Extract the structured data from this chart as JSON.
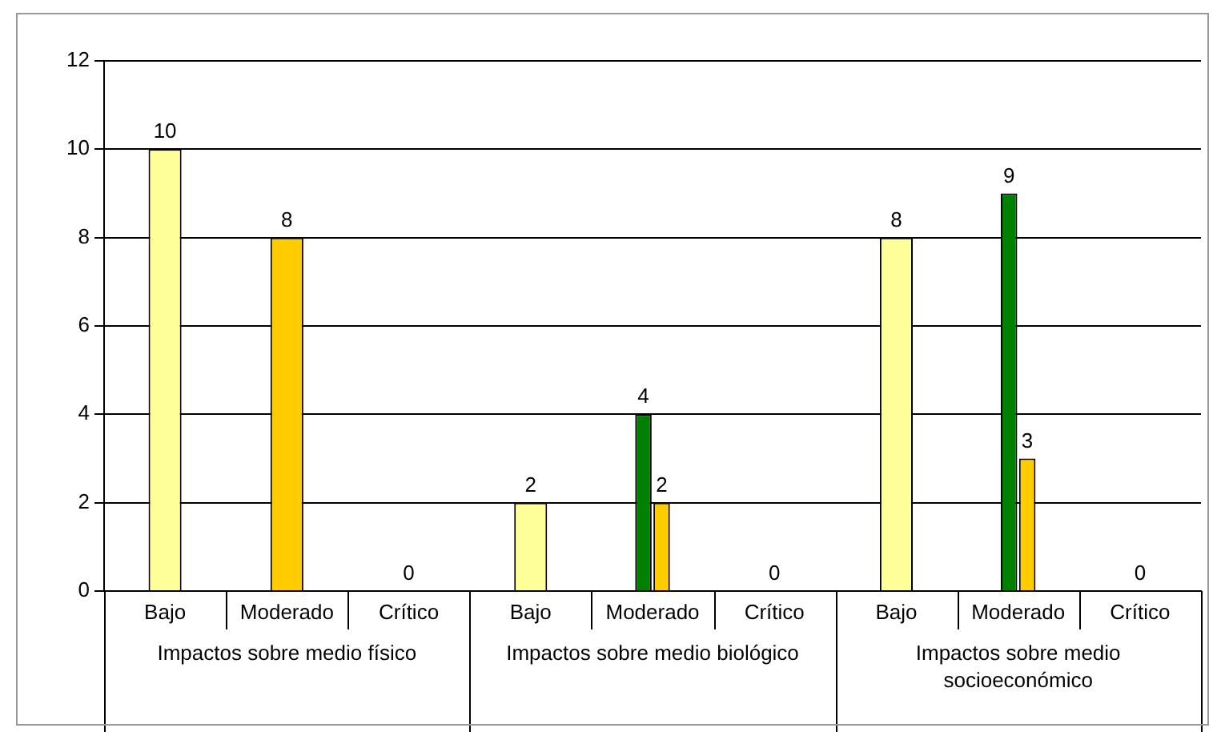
{
  "chart_data": {
    "type": "bar",
    "categories": [
      "Bajo",
      "Moderado",
      "Crítico",
      "Bajo",
      "Moderado",
      "Crítico",
      "Bajo",
      "Moderado",
      "Crítico"
    ],
    "series": [
      {
        "color": "#ffff99",
        "values": [
          10,
          null,
          null,
          2,
          null,
          null,
          8,
          null,
          null
        ]
      },
      {
        "color": "#008000",
        "values": [
          null,
          null,
          null,
          null,
          4,
          null,
          null,
          9,
          null
        ]
      },
      {
        "color": "#ffcc00",
        "values": [
          null,
          8,
          0,
          null,
          2,
          0,
          null,
          3,
          0
        ]
      }
    ],
    "ylim": [
      0,
      12
    ],
    "yticks": [
      0,
      2,
      4,
      6,
      8,
      10,
      12
    ],
    "grid": "y",
    "legend": false,
    "data_labels": true,
    "annotations": [
      "Impactos sobre medio físico",
      "Impactos sobre medio biológico",
      "Impactos sobre medio socioeconómico"
    ]
  }
}
